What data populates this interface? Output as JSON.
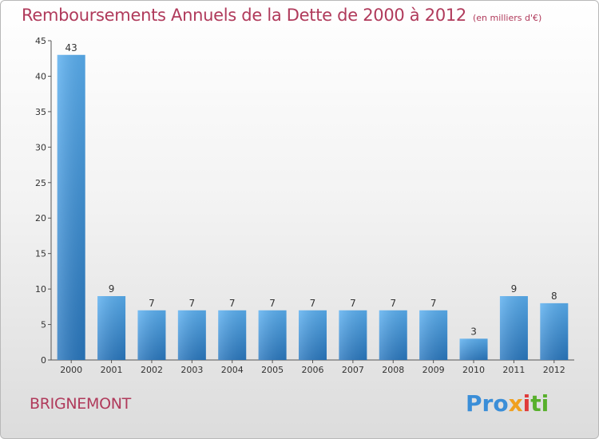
{
  "chart_data": {
    "type": "bar",
    "title": "Remboursements Annuels de la Dette de 2000 à 2012",
    "subtitle": "(en milliers d'€)",
    "categories": [
      "2000",
      "2001",
      "2002",
      "2003",
      "2004",
      "2005",
      "2006",
      "2007",
      "2008",
      "2009",
      "2010",
      "2011",
      "2012"
    ],
    "values": [
      43,
      9,
      7,
      7,
      7,
      7,
      7,
      7,
      7,
      7,
      3,
      9,
      8
    ],
    "ylim": [
      0,
      45
    ],
    "yticks": [
      0,
      5,
      10,
      15,
      20,
      25,
      30,
      35,
      40,
      45
    ],
    "grid": false,
    "bar_color_top": "#5aaff0",
    "bar_color_bottom": "#2a78bf",
    "title_color": "#b03a5b"
  },
  "footer": {
    "commune": "BRIGNEMONT",
    "logo": [
      "Pro",
      "x",
      "i",
      "ti"
    ]
  }
}
